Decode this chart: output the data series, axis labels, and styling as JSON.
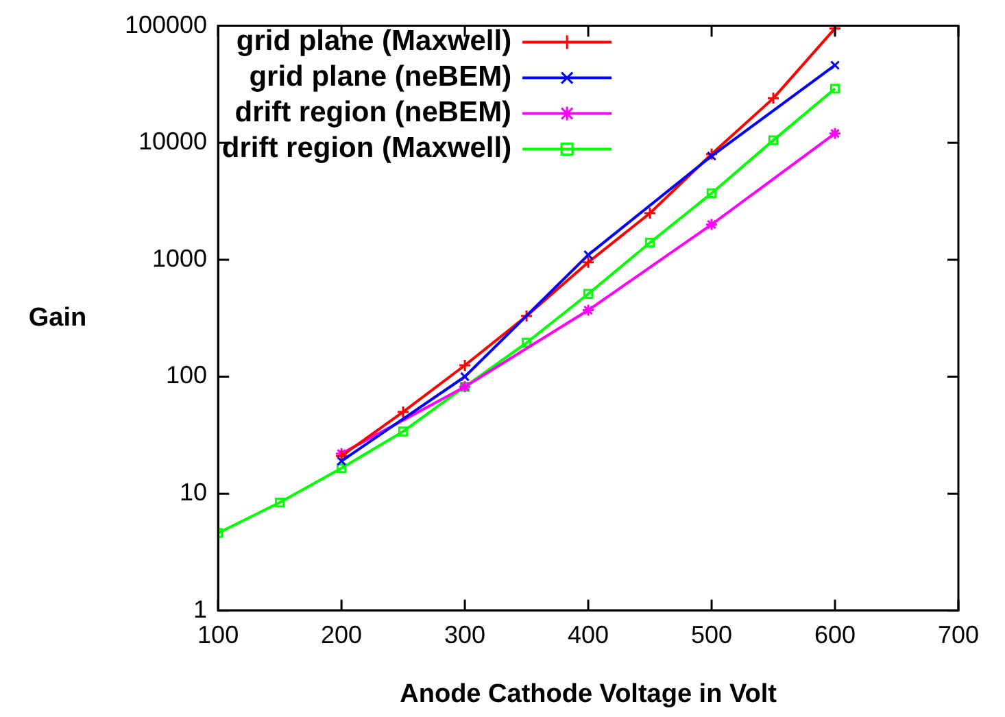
{
  "chart_data": {
    "type": "line",
    "xlabel": "Anode Cathode Voltage in Volt",
    "ylabel": "Gain",
    "log": "y",
    "xlim": [
      100,
      700
    ],
    "xticks": [
      100,
      200,
      300,
      400,
      500,
      600,
      700
    ],
    "ylim": [
      1,
      100000
    ],
    "yticks": [
      1,
      10,
      100,
      1000,
      10000,
      100000
    ],
    "grid": false,
    "legend": "top left",
    "line_style": "solid",
    "series": [
      {
        "name": "grid plane (Maxwell)",
        "color": "#ff0000",
        "marker": "cross",
        "x": [
          200,
          250,
          300,
          350,
          400,
          450,
          500,
          550,
          600
        ],
        "values": [
          21,
          50,
          125,
          330,
          950,
          2500,
          8000,
          24000,
          95000
        ]
      },
      {
        "name": "grid plane (neBEM)",
        "color": "#0000ff",
        "marker": "cross",
        "x": [
          200,
          300,
          400,
          500,
          600
        ],
        "values": [
          19,
          100,
          1100,
          7700,
          46000
        ]
      },
      {
        "name": "drift region (neBEM)",
        "color": "#ff00ff",
        "marker": "cross",
        "x": [
          200,
          300,
          400,
          500,
          600
        ],
        "values": [
          22,
          82,
          370,
          2000,
          12000
        ]
      },
      {
        "name": "drift region (Maxwell)",
        "color": "#00ff00",
        "marker": "square",
        "x": [
          100,
          150,
          200,
          250,
          300,
          350,
          400,
          450,
          500,
          550,
          600
        ],
        "values": [
          4.6,
          8.4,
          16.5,
          34,
          82,
          195,
          510,
          1400,
          3700,
          10500,
          29000
        ]
      }
    ]
  }
}
